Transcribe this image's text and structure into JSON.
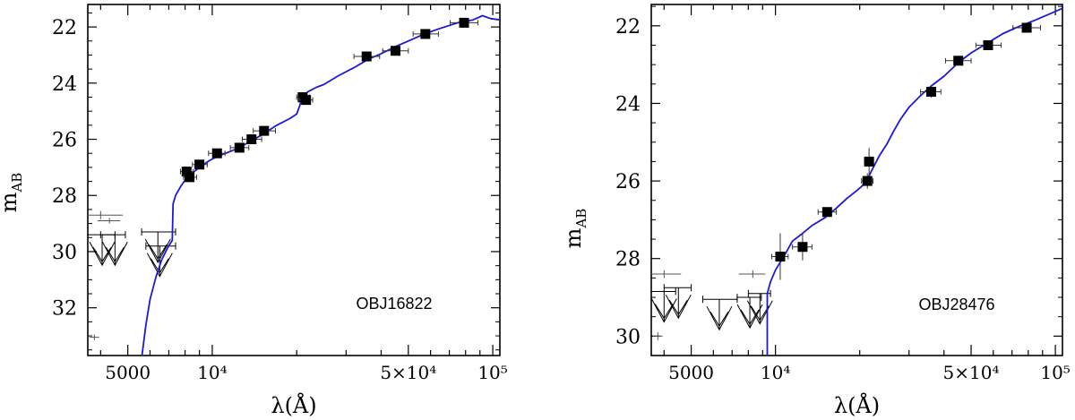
{
  "chart_data": [
    {
      "type": "scatter",
      "title": "",
      "label": "OBJ16822",
      "xlabel": "λ(Å)",
      "ylabel_main": "m",
      "ylabel_sub": "AB",
      "x_scale": "log",
      "xlim": [
        3600,
        106000
      ],
      "ylim": [
        33.7,
        21.2
      ],
      "y_inverted": true,
      "x_ticks": [
        {
          "value": 5000,
          "label": "5000"
        },
        {
          "value": 10000,
          "label": "10⁴"
        },
        {
          "value": 50000,
          "label": "5×10⁴"
        },
        {
          "value": 100000,
          "label": "10⁵"
        }
      ],
      "y_ticks": [
        {
          "value": 22,
          "label": "22"
        },
        {
          "value": 24,
          "label": "24"
        },
        {
          "value": 26,
          "label": "26"
        },
        {
          "value": 28,
          "label": "28"
        },
        {
          "value": 30,
          "label": "30"
        },
        {
          "value": 32,
          "label": "32"
        }
      ],
      "series": [
        {
          "kind": "detections",
          "points": [
            {
              "x": 8100,
              "y": 27.15,
              "xerr": [
                7700,
                8550
              ],
              "yerr": 0.15
            },
            {
              "x": 8300,
              "y": 27.35,
              "xerr": [
                7900,
                8800
              ],
              "yerr": 0.15
            },
            {
              "x": 9000,
              "y": 26.9,
              "xerr": [
                8500,
                9600
              ],
              "yerr": 0.15
            },
            {
              "x": 10400,
              "y": 26.5,
              "xerr": [
                9700,
                11100
              ],
              "yerr": 0.12
            },
            {
              "x": 12500,
              "y": 26.3,
              "xerr": [
                11600,
                13500
              ],
              "yerr": 0.12
            },
            {
              "x": 13800,
              "y": 26.0,
              "xerr": [
                12800,
                15000
              ],
              "yerr": 0.12
            },
            {
              "x": 15300,
              "y": 25.7,
              "xerr": [
                14000,
                16800
              ],
              "yerr": 0.1
            },
            {
              "x": 21000,
              "y": 24.5,
              "xerr": [
                20000,
                22200
              ],
              "yerr": 0.15
            },
            {
              "x": 21600,
              "y": 24.6,
              "xerr": [
                20400,
                22800
              ],
              "yerr": 0.15
            },
            {
              "x": 35500,
              "y": 23.05,
              "xerr": [
                32000,
                39500
              ],
              "yerr": 0.12
            },
            {
              "x": 45000,
              "y": 22.85,
              "xerr": [
                40500,
                50000
              ],
              "yerr": 0.12
            },
            {
              "x": 57500,
              "y": 22.25,
              "xerr": [
                52000,
                64000
              ],
              "yerr": 0.1
            },
            {
              "x": 79000,
              "y": 21.85,
              "xerr": [
                70500,
                88500
              ],
              "yerr": 0.1
            }
          ]
        },
        {
          "kind": "upper_limits",
          "points": [
            {
              "x": 4050,
              "y": 29.4,
              "xerr": [
                3600,
                4500
              ]
            },
            {
              "x": 4500,
              "y": 29.4,
              "xerr": [
                4000,
                4900
              ]
            },
            {
              "x": 6400,
              "y": 29.3,
              "xerr": [
                5600,
                7400
              ]
            },
            {
              "x": 6500,
              "y": 29.8,
              "xerr": [
                5800,
                7400
              ]
            }
          ]
        },
        {
          "kind": "faint_errorbars",
          "points": [
            {
              "x": 4000,
              "y": 28.7,
              "xerr": [
                3600,
                4800
              ],
              "yerr": 0.15
            },
            {
              "x": 4300,
              "y": 28.9,
              "xerr": [
                3900,
                4700
              ],
              "yerr": 0.1
            },
            {
              "x": 3800,
              "y": 33.05,
              "xerr": [
                3650,
                3950
              ],
              "yerr": 0.1
            }
          ]
        },
        {
          "kind": "model",
          "color": "#1a1ad6",
          "points": [
            [
              5600,
              33.8
            ],
            [
              5800,
              32.6
            ],
            [
              6000,
              31.7
            ],
            [
              6300,
              30.9
            ],
            [
              6600,
              30.3
            ],
            [
              6900,
              29.9
            ],
            [
              7200,
              29.6
            ],
            [
              7250,
              28.3
            ],
            [
              7400,
              28.0
            ],
            [
              7700,
              27.7
            ],
            [
              8000,
              27.45
            ],
            [
              8500,
              27.2
            ],
            [
              9000,
              27.0
            ],
            [
              9800,
              26.75
            ],
            [
              10500,
              26.6
            ],
            [
              11500,
              26.45
            ],
            [
              12500,
              26.3
            ],
            [
              13500,
              26.1
            ],
            [
              15000,
              25.85
            ],
            [
              17000,
              25.5
            ],
            [
              19000,
              25.25
            ],
            [
              20000,
              25.1
            ],
            [
              20500,
              24.8
            ],
            [
              21000,
              24.45
            ],
            [
              22000,
              24.3
            ],
            [
              23500,
              24.15
            ],
            [
              25000,
              24.05
            ],
            [
              28000,
              23.75
            ],
            [
              32000,
              23.45
            ],
            [
              36000,
              23.15
            ],
            [
              40000,
              22.95
            ],
            [
              45000,
              22.7
            ],
            [
              50000,
              22.5
            ],
            [
              57000,
              22.25
            ],
            [
              65000,
              22.05
            ],
            [
              75000,
              21.85
            ],
            [
              85000,
              21.75
            ],
            [
              92000,
              21.6
            ],
            [
              98000,
              21.7
            ],
            [
              106000,
              21.75
            ]
          ]
        }
      ]
    },
    {
      "type": "scatter",
      "title": "",
      "label": "OBJ28476",
      "xlabel": "λ(Å)",
      "ylabel_main": "m",
      "ylabel_sub": "AB",
      "x_scale": "log",
      "xlim": [
        3600,
        106000
      ],
      "ylim": [
        30.5,
        21.45
      ],
      "y_inverted": true,
      "x_ticks": [
        {
          "value": 5000,
          "label": "5000"
        },
        {
          "value": 10000,
          "label": "10⁴"
        },
        {
          "value": 50000,
          "label": "5×10⁴"
        },
        {
          "value": 100000,
          "label": "10⁵"
        }
      ],
      "y_ticks": [
        {
          "value": 22,
          "label": "22"
        },
        {
          "value": 24,
          "label": "24"
        },
        {
          "value": 26,
          "label": "26"
        },
        {
          "value": 28,
          "label": "28"
        },
        {
          "value": 30,
          "label": "30"
        }
      ],
      "series": [
        {
          "kind": "detections",
          "points": [
            {
              "x": 10400,
              "y": 27.95,
              "xerr": [
                9700,
                11100
              ],
              "yerr": 0.6
            },
            {
              "x": 12500,
              "y": 27.7,
              "xerr": [
                11500,
                13500
              ],
              "yerr": 0.35
            },
            {
              "x": 15300,
              "y": 26.8,
              "xerr": [
                14200,
                16500
              ],
              "yerr": 0.12
            },
            {
              "x": 21300,
              "y": 26.0,
              "xerr": [
                20300,
                22300
              ],
              "yerr": 0.2
            },
            {
              "x": 21600,
              "y": 25.5,
              "xerr": [
                20800,
                22400
              ],
              "yerr": 0.35
            },
            {
              "x": 36000,
              "y": 23.7,
              "xerr": [
                33000,
                39000
              ],
              "yerr": 0.15
            },
            {
              "x": 45000,
              "y": 22.9,
              "xerr": [
                40500,
                50000
              ],
              "yerr": 0.12
            },
            {
              "x": 57500,
              "y": 22.5,
              "xerr": [
                52000,
                64000
              ],
              "yerr": 0.1
            },
            {
              "x": 79000,
              "y": 22.05,
              "xerr": [
                70500,
                88500
              ],
              "yerr": 0.1
            }
          ]
        },
        {
          "kind": "upper_limits",
          "points": [
            {
              "x": 4000,
              "y": 28.85,
              "xerr": [
                3600,
                4400
              ]
            },
            {
              "x": 4500,
              "y": 28.75,
              "xerr": [
                4000,
                5000
              ]
            },
            {
              "x": 6300,
              "y": 29.05,
              "xerr": [
                5500,
                7300
              ]
            },
            {
              "x": 8100,
              "y": 29.0,
              "xerr": [
                7300,
                8900
              ]
            },
            {
              "x": 8800,
              "y": 28.9,
              "xerr": [
                8000,
                9600
              ]
            }
          ]
        },
        {
          "kind": "faint_errorbars",
          "points": [
            {
              "x": 4000,
              "y": 28.4,
              "xerr": [
                3600,
                4600
              ],
              "yerr": 0.1
            },
            {
              "x": 8300,
              "y": 28.4,
              "xerr": [
                7400,
                9200
              ],
              "yerr": 0.1
            },
            {
              "x": 3800,
              "y": 30.0,
              "xerr": [
                3650,
                3950
              ],
              "yerr": 0.1
            }
          ]
        },
        {
          "kind": "model",
          "color": "#1a1ad6",
          "points": [
            [
              9350,
              30.6
            ],
            [
              9350,
              28.9
            ],
            [
              9600,
              28.6
            ],
            [
              10000,
              28.3
            ],
            [
              10800,
              27.9
            ],
            [
              11500,
              27.55
            ],
            [
              12500,
              27.35
            ],
            [
              13500,
              27.15
            ],
            [
              15000,
              26.95
            ],
            [
              16500,
              26.7
            ],
            [
              18000,
              26.45
            ],
            [
              19500,
              26.25
            ],
            [
              21000,
              26.05
            ],
            [
              22000,
              25.75
            ],
            [
              23500,
              25.35
            ],
            [
              25000,
              25.05
            ],
            [
              26500,
              24.7
            ],
            [
              28000,
              24.4
            ],
            [
              30000,
              24.1
            ],
            [
              33000,
              23.8
            ],
            [
              36000,
              23.55
            ],
            [
              40000,
              23.3
            ],
            [
              45000,
              22.95
            ],
            [
              50000,
              22.7
            ],
            [
              57000,
              22.45
            ],
            [
              65000,
              22.2
            ],
            [
              75000,
              22.0
            ],
            [
              85000,
              21.85
            ],
            [
              95000,
              21.7
            ],
            [
              106000,
              21.55
            ]
          ]
        }
      ]
    }
  ]
}
